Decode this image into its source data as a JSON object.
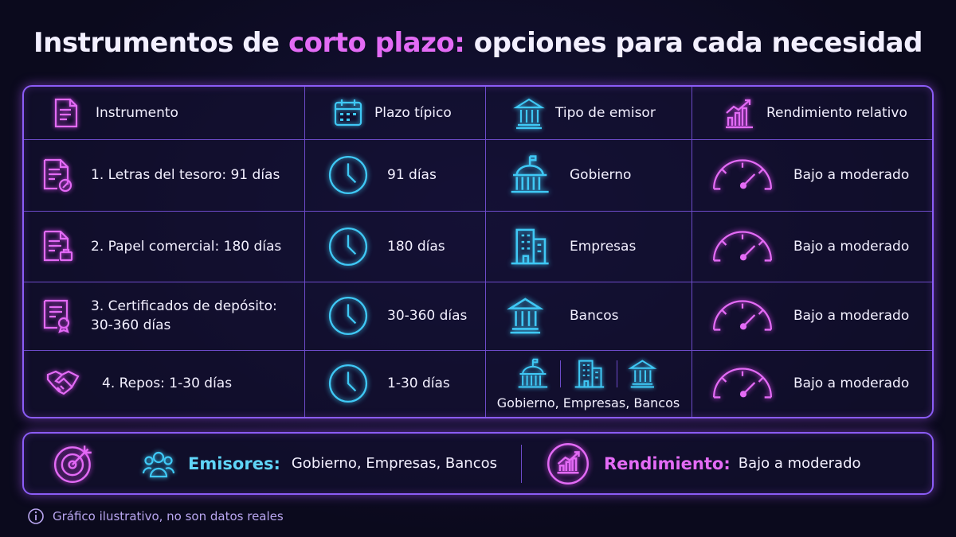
{
  "title": {
    "before": "Instrumentos de",
    "highlight": "corto plazo:",
    "after": "opciones para cada necesidad"
  },
  "table": {
    "headers": [
      "Instrumento",
      "Plazo típico",
      "Tipo de emisor",
      "Rendimiento relativo"
    ],
    "rows": [
      [
        "1. Letras del tesoro: 91 días",
        "91 días",
        "Gobierno",
        "Bajo a moderado"
      ],
      [
        "2. Papel comercial: 180 días",
        "180 días",
        "Empresas",
        "Bajo a moderado"
      ],
      [
        "3. Certificados de depósito: 30-360 días",
        "30-360 días",
        "Bancos",
        "Bajo a moderado"
      ],
      [
        "4. Repos: 1-30 días",
        "1-30 días",
        "Gobierno, Empresas, Bancos",
        "Bajo a moderado"
      ]
    ]
  },
  "summary": {
    "emisores_label": "Emisores:",
    "emisores": "Gobierno, Empresas, Bancos",
    "rendimiento_label": "Rendimiento:",
    "rendimiento": "Bajo a moderado"
  },
  "note": "Gráfico ilustrativo, no son datos reales"
}
